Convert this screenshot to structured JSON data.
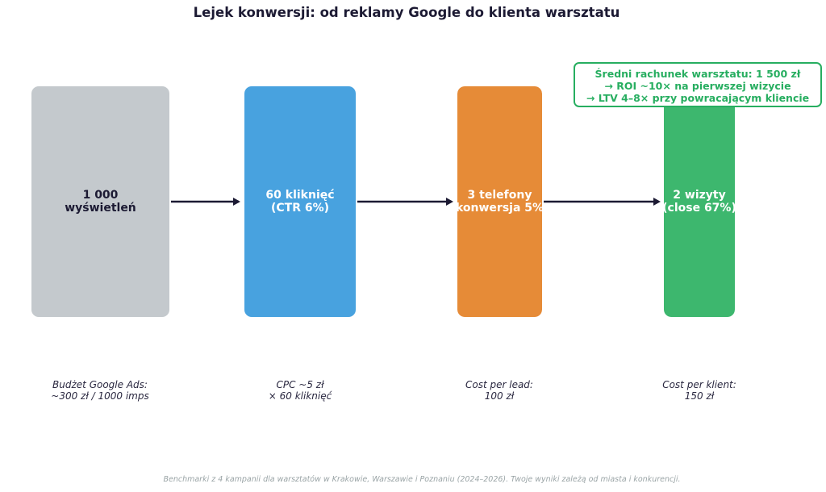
{
  "title": "Lejek konwersji: od reklamy Google do klienta warsztatu",
  "colors": {
    "impressions": "#c4c9cd",
    "clicks": "#48a2df",
    "calls": "#e68b37",
    "visits": "#3db76e",
    "accent_green": "#27ae60",
    "arrow": "#1c1a33"
  },
  "stages": [
    {
      "label": "1 000\nwyświetleń",
      "note": "Budżet Google Ads:\n~300 zł / 1000 imps"
    },
    {
      "label": "60 kliknięć\n(CTR 6%)",
      "note": "CPC ~5 zł\n× 60 kliknięć"
    },
    {
      "label": "3 telefony\n(konwersja 5%)",
      "note": "Cost per lead:\n100 zł"
    },
    {
      "label": "2 wizyty\n(close 67%)",
      "note": "Cost per klient:\n150 zł"
    }
  ],
  "callout": {
    "line1": "Średni rachunek warsztatu: 1 500 zł",
    "line2": "→ ROI ~10× na pierwszej wizycie",
    "line3": "→ LTV 4–8× przy powracającym kliencie"
  },
  "footer": "Benchmarki z 4 kampanii dla warsztatów w Krakowie, Warszawie i Poznaniu (2024–2026). Twoje wyniki zależą od miasta i konkurencji."
}
